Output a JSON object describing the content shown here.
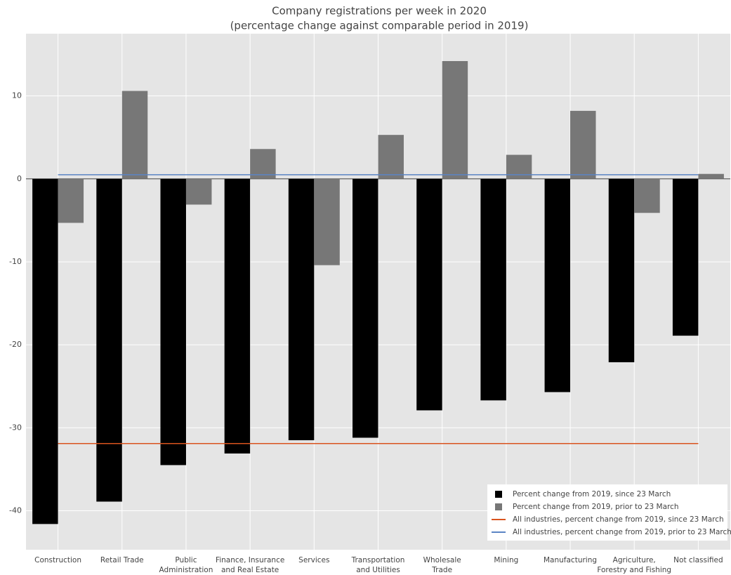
{
  "chart_data": {
    "type": "bar",
    "title": "Company registrations per week in 2020",
    "subtitle": "(percentage change against comparable period in 2019)",
    "categories": [
      "Construction",
      "Retail Trade",
      "Public\nAdministration",
      "Finance, Insurance\nand Real Estate",
      "Services",
      "Transportation\nand Utilities",
      "Wholesale\nTrade",
      "Mining",
      "Manufacturing",
      "Agriculture,\nForestry and Fishing",
      "Not classified"
    ],
    "series": [
      {
        "name": "Percent change from 2019, since 23 March",
        "type": "bar",
        "color": "#000000",
        "values": [
          -41.6,
          -38.9,
          -34.5,
          -33.1,
          -31.5,
          -31.2,
          -27.9,
          -26.7,
          -25.7,
          -22.1,
          -18.9
        ]
      },
      {
        "name": "Percent change from 2019, prior to 23 March",
        "type": "bar",
        "color": "#777777",
        "values": [
          -5.3,
          10.6,
          -3.1,
          3.6,
          -10.4,
          5.3,
          14.2,
          2.9,
          8.2,
          -4.1,
          0.6
        ]
      },
      {
        "name": "All industries, percent change from 2019, since 23 March",
        "type": "line",
        "color": "#d9541e",
        "values": [
          -31.9,
          -31.9,
          -31.9,
          -31.9,
          -31.9,
          -31.9,
          -31.9,
          -31.9,
          -31.9,
          -31.9,
          -31.9
        ]
      },
      {
        "name": "All industries, percent change from 2019, prior to 23 March",
        "type": "line",
        "color": "#5b84c4",
        "values": [
          0.5,
          0.5,
          0.5,
          0.5,
          0.5,
          0.5,
          0.5,
          0.5,
          0.5,
          0.5,
          0.5
        ]
      }
    ],
    "ylim": [
      -44.7,
      17.5
    ],
    "yticks": [
      -40,
      -30,
      -20,
      -10,
      0,
      10
    ],
    "grid": true,
    "legend": "bottom-right"
  }
}
